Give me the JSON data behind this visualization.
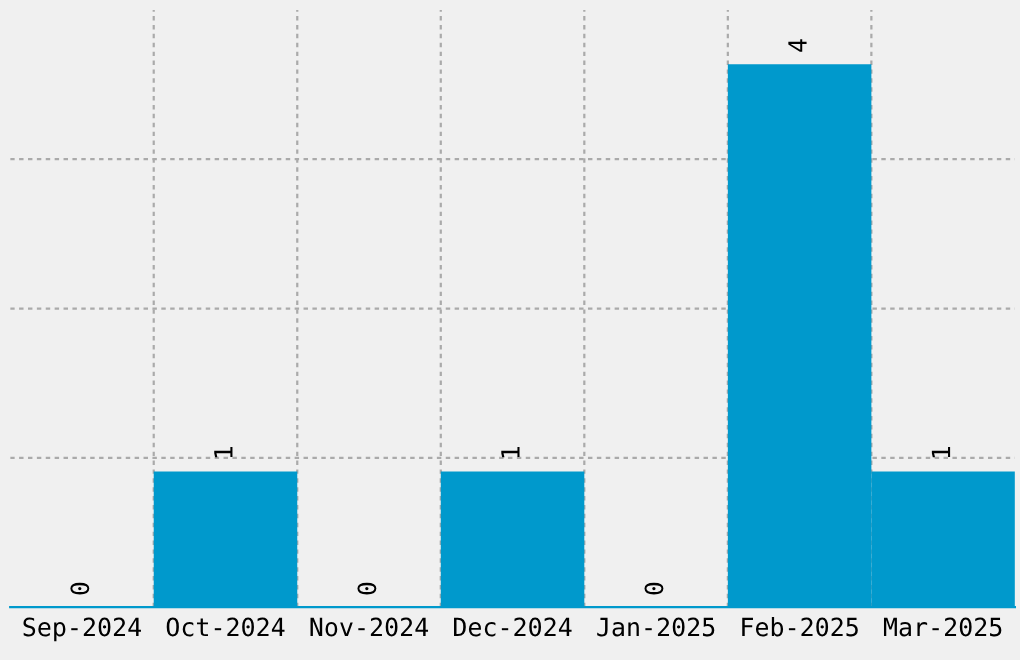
{
  "chart_data": {
    "type": "bar",
    "categories": [
      "Sep-2024",
      "Oct-2024",
      "Nov-2024",
      "Dec-2024",
      "Jan-2025",
      "Feb-2025",
      "Mar-2025"
    ],
    "values": [
      0,
      1,
      0,
      1,
      0,
      4,
      1
    ],
    "color": "#0099cc",
    "ylim": [
      0,
      4.4
    ],
    "yticks": [
      {
        "value": 1.1,
        "label": null
      },
      {
        "value": 2.2,
        "label": null
      },
      {
        "value": 3.3,
        "label": null
      }
    ],
    "tick_labels": "x",
    "grid": true,
    "data_labels": true
  }
}
